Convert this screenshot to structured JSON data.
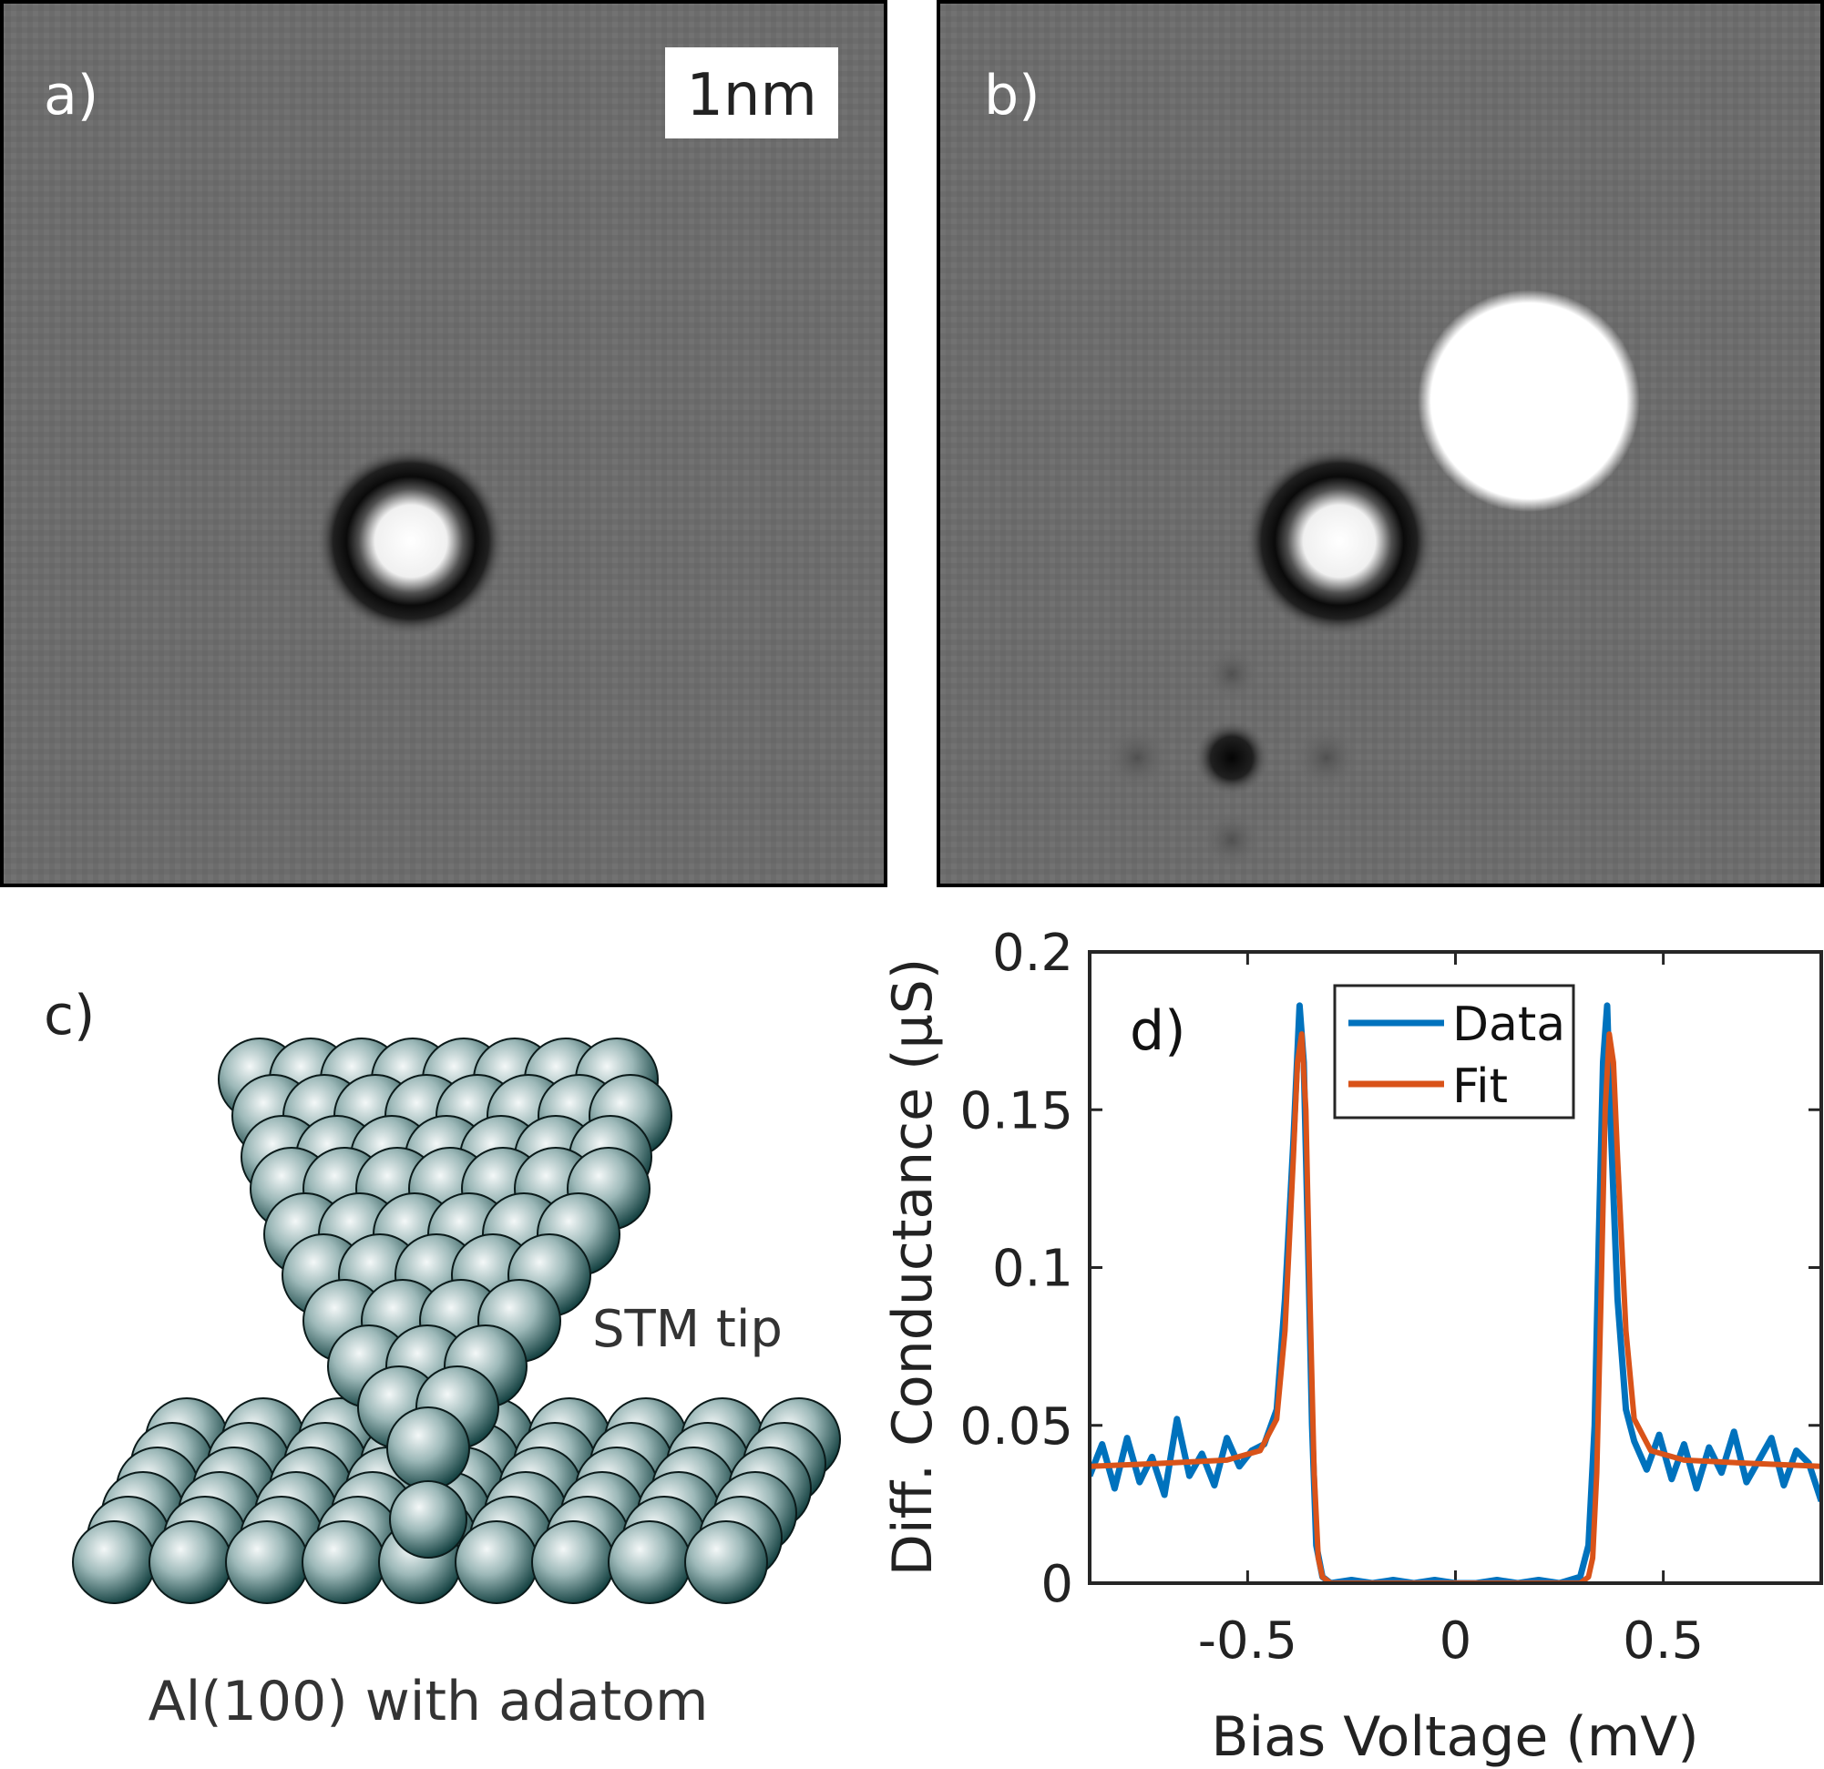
{
  "panels": {
    "a": {
      "label": "a)",
      "scale_bar": "1nm"
    },
    "b": {
      "label": "b)"
    },
    "c": {
      "label": "c)",
      "tip_label": "STM tip",
      "surface_label": "Al(100) with adatom"
    },
    "d": {
      "label": "d)"
    }
  },
  "colors": {
    "stm_background": "#6e6e6e",
    "atom_dark": "#0e3c3c",
    "atom_light": "#f4f8f8",
    "data": "#0072bd",
    "fit": "#d95319"
  },
  "chart_data": {
    "type": "line",
    "xlabel": "Bias Voltage (mV)",
    "ylabel": "Diff. Conductance (µS)",
    "xlim": [
      -0.88,
      0.88
    ],
    "ylim": [
      0,
      0.2
    ],
    "xticks": [
      -0.5,
      0,
      0.5
    ],
    "xtick_labels": [
      "-0.5",
      "0",
      "0.5"
    ],
    "yticks": [
      0,
      0.05,
      0.1,
      0.15,
      0.2
    ],
    "ytick_labels": [
      "0",
      "0.05",
      "0.1",
      "0.15",
      "0.2"
    ],
    "legend_position": "top-center",
    "grid": false,
    "series": [
      {
        "name": "Data",
        "color": "#0072bd",
        "x": [
          -0.88,
          -0.85,
          -0.82,
          -0.79,
          -0.76,
          -0.73,
          -0.7,
          -0.67,
          -0.64,
          -0.61,
          -0.58,
          -0.55,
          -0.52,
          -0.49,
          -0.46,
          -0.43,
          -0.41,
          -0.39,
          -0.375,
          -0.365,
          -0.355,
          -0.345,
          -0.335,
          -0.32,
          -0.3,
          -0.25,
          -0.2,
          -0.15,
          -0.1,
          -0.05,
          0,
          0.05,
          0.1,
          0.15,
          0.2,
          0.25,
          0.3,
          0.32,
          0.335,
          0.345,
          0.355,
          0.365,
          0.375,
          0.39,
          0.41,
          0.43,
          0.46,
          0.49,
          0.52,
          0.55,
          0.58,
          0.61,
          0.64,
          0.67,
          0.7,
          0.73,
          0.76,
          0.79,
          0.82,
          0.85,
          0.88
        ],
        "y": [
          0.034,
          0.044,
          0.03,
          0.046,
          0.032,
          0.04,
          0.028,
          0.052,
          0.034,
          0.041,
          0.031,
          0.046,
          0.037,
          0.042,
          0.044,
          0.055,
          0.09,
          0.14,
          0.183,
          0.165,
          0.11,
          0.05,
          0.012,
          0.002,
          0.0,
          0.001,
          0.0,
          0.001,
          0.0,
          0.001,
          0.0,
          0.0,
          0.001,
          0.0,
          0.001,
          0.0,
          0.002,
          0.012,
          0.05,
          0.11,
          0.165,
          0.183,
          0.14,
          0.09,
          0.055,
          0.045,
          0.036,
          0.047,
          0.033,
          0.044,
          0.03,
          0.043,
          0.035,
          0.048,
          0.032,
          0.039,
          0.046,
          0.031,
          0.042,
          0.038,
          0.026
        ]
      },
      {
        "name": "Fit",
        "color": "#d95319",
        "x": [
          -0.88,
          -0.7,
          -0.55,
          -0.47,
          -0.43,
          -0.41,
          -0.39,
          -0.38,
          -0.37,
          -0.36,
          -0.35,
          -0.34,
          -0.33,
          -0.32,
          -0.3,
          -0.2,
          0,
          0.2,
          0.3,
          0.32,
          0.33,
          0.34,
          0.35,
          0.36,
          0.37,
          0.38,
          0.39,
          0.41,
          0.43,
          0.47,
          0.55,
          0.7,
          0.88
        ],
        "y": [
          0.037,
          0.038,
          0.039,
          0.042,
          0.052,
          0.08,
          0.135,
          0.165,
          0.174,
          0.15,
          0.09,
          0.035,
          0.008,
          0.002,
          0.0,
          0.0,
          0.0,
          0.0,
          0.0,
          0.002,
          0.008,
          0.035,
          0.09,
          0.15,
          0.174,
          0.165,
          0.135,
          0.08,
          0.052,
          0.042,
          0.039,
          0.038,
          0.037
        ]
      }
    ]
  }
}
